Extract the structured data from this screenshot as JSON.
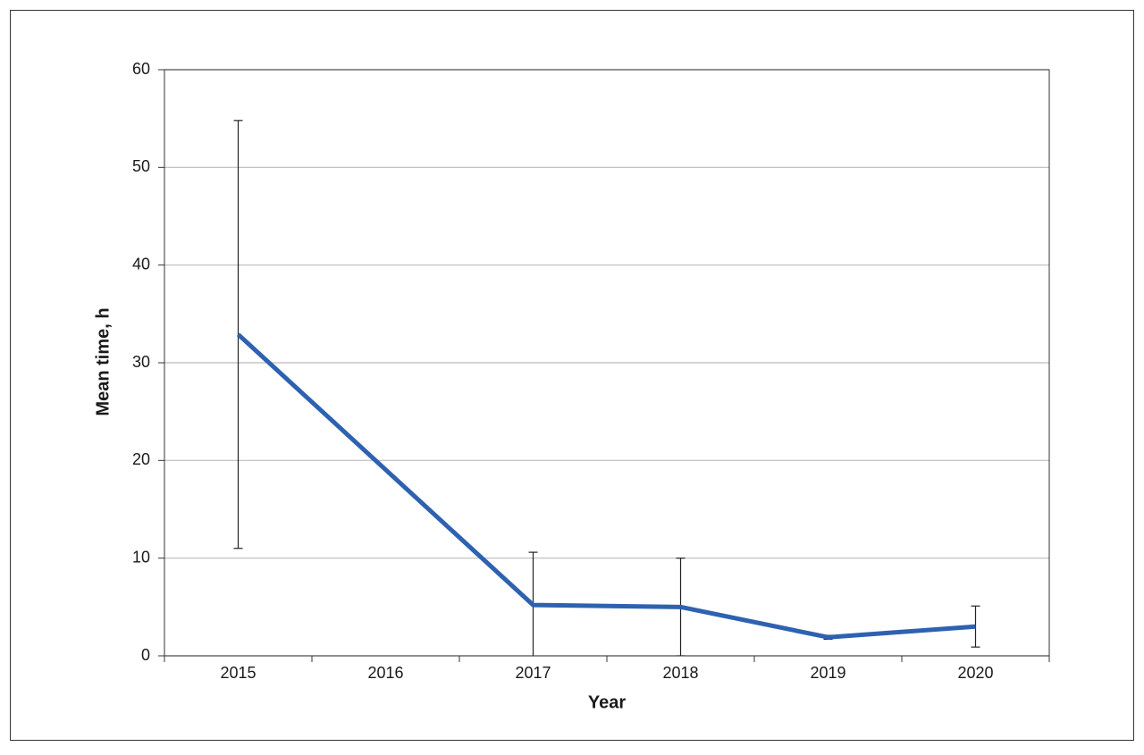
{
  "chart_data": {
    "type": "line",
    "x_label": "Year",
    "y_label": "Mean time, h",
    "x": [
      2015,
      2017,
      2018,
      2019,
      2020
    ],
    "xlim": [
      2014.5,
      2020.5
    ],
    "xticks": [
      2015,
      2016,
      2017,
      2018,
      2019,
      2020
    ],
    "ylim": [
      0,
      60
    ],
    "yticks": [
      0,
      10,
      20,
      30,
      40,
      50,
      60
    ],
    "grid": true,
    "series": [
      {
        "color": "#2e62b0",
        "values": [
          32.9,
          5.2,
          5.0,
          1.9,
          3.0
        ],
        "errors": [
          21.9,
          5.4,
          5.0,
          0.2,
          2.1
        ]
      }
    ]
  }
}
